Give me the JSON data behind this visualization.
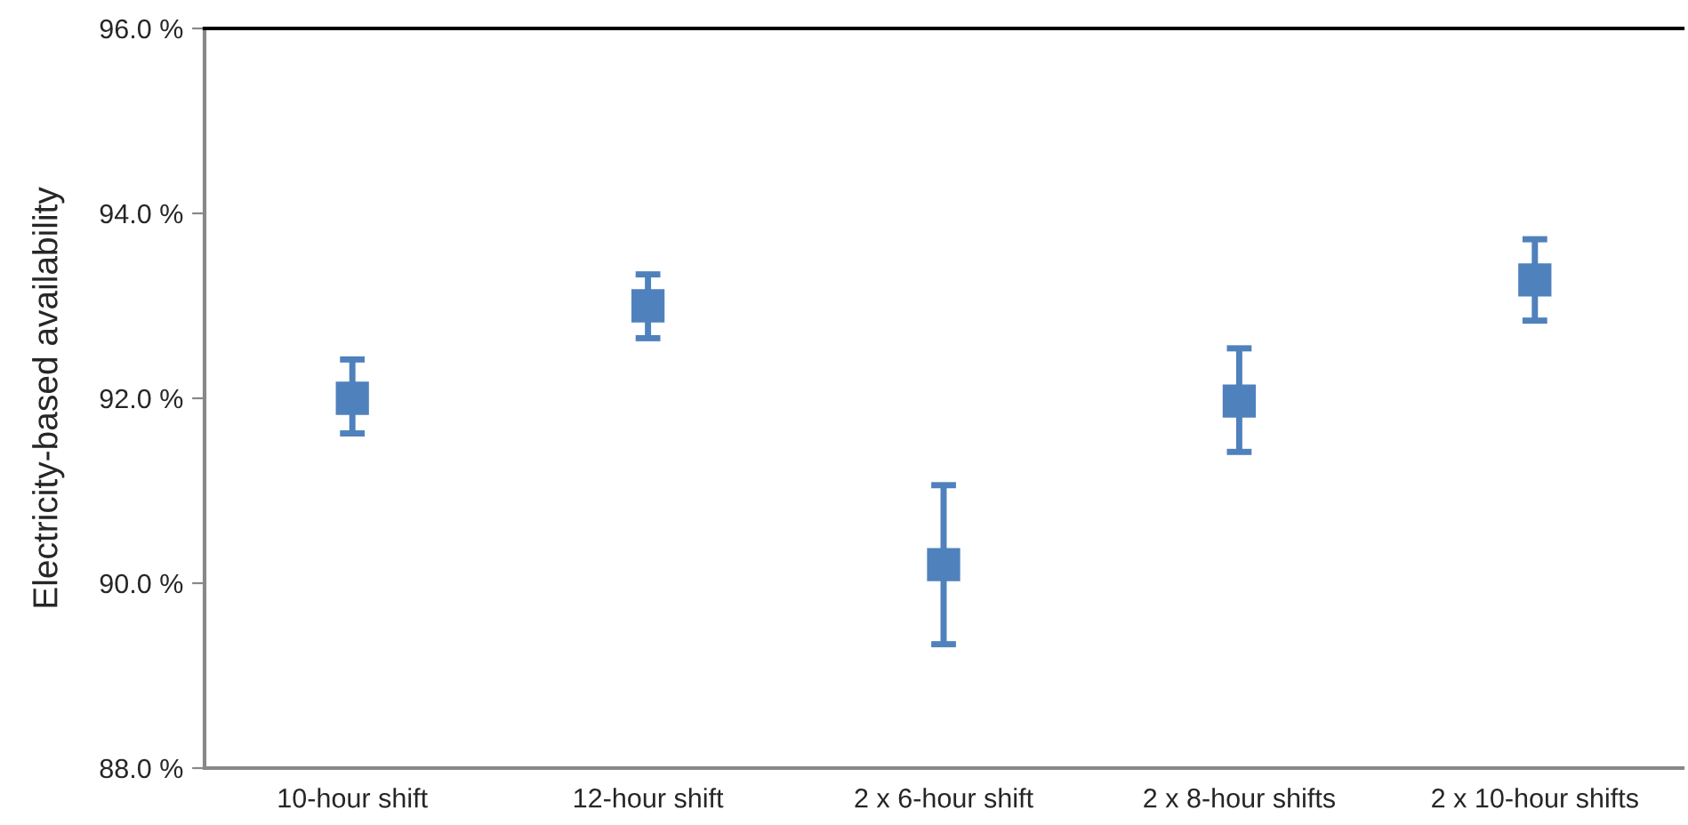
{
  "chart_data": {
    "type": "scatter",
    "ylabel": "Electricity-based availability",
    "categories": [
      "10-hour shift",
      "12-hour shift",
      "2 x 6-hour shift",
      "2 x 8-hour shifts",
      "2 x 10-hour shifts"
    ],
    "series": [
      {
        "color": "#4f81bd",
        "values": [
          92.0,
          93.0,
          90.2,
          91.97,
          93.28
        ],
        "errors": [
          [
            91.62,
            92.42
          ],
          [
            92.65,
            93.34
          ],
          [
            89.34,
            91.06
          ],
          [
            91.42,
            92.54
          ],
          [
            92.84,
            93.72
          ]
        ]
      }
    ],
    "ylim": [
      88,
      96
    ],
    "yticks": [
      {
        "value": 88,
        "label": "88.0 %"
      },
      {
        "value": 90,
        "label": "90.0 %"
      },
      {
        "value": 92,
        "label": "92.0 %"
      },
      {
        "value": 94,
        "label": "94.0 %"
      },
      {
        "value": 96,
        "label": "96.0 %"
      }
    ],
    "marker": "square",
    "grid": false,
    "legend": false
  }
}
